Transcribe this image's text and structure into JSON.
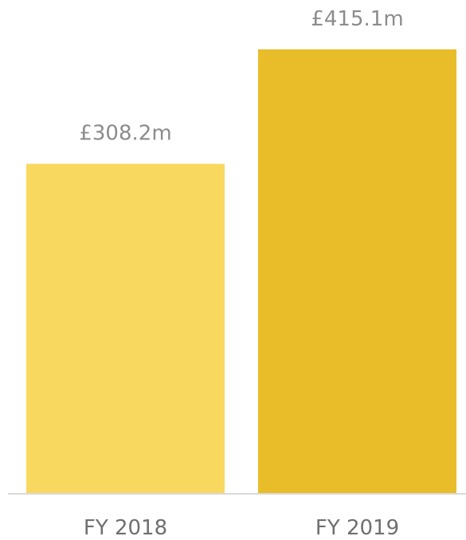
{
  "chart_data": {
    "type": "bar",
    "categories": [
      "FY 2018",
      "FY 2019"
    ],
    "values": [
      308.2,
      415.1
    ],
    "value_labels": [
      "£308.2m",
      "£415.1m"
    ],
    "bar_colors": [
      "#f9d85f",
      "#e9bd2a"
    ],
    "ylim": [
      0,
      415.1
    ],
    "title": "",
    "xlabel": "",
    "ylabel": "",
    "grid": false,
    "legend": "none",
    "axis_color": "#d9d9d9",
    "label_color": "#8c8c8c"
  }
}
